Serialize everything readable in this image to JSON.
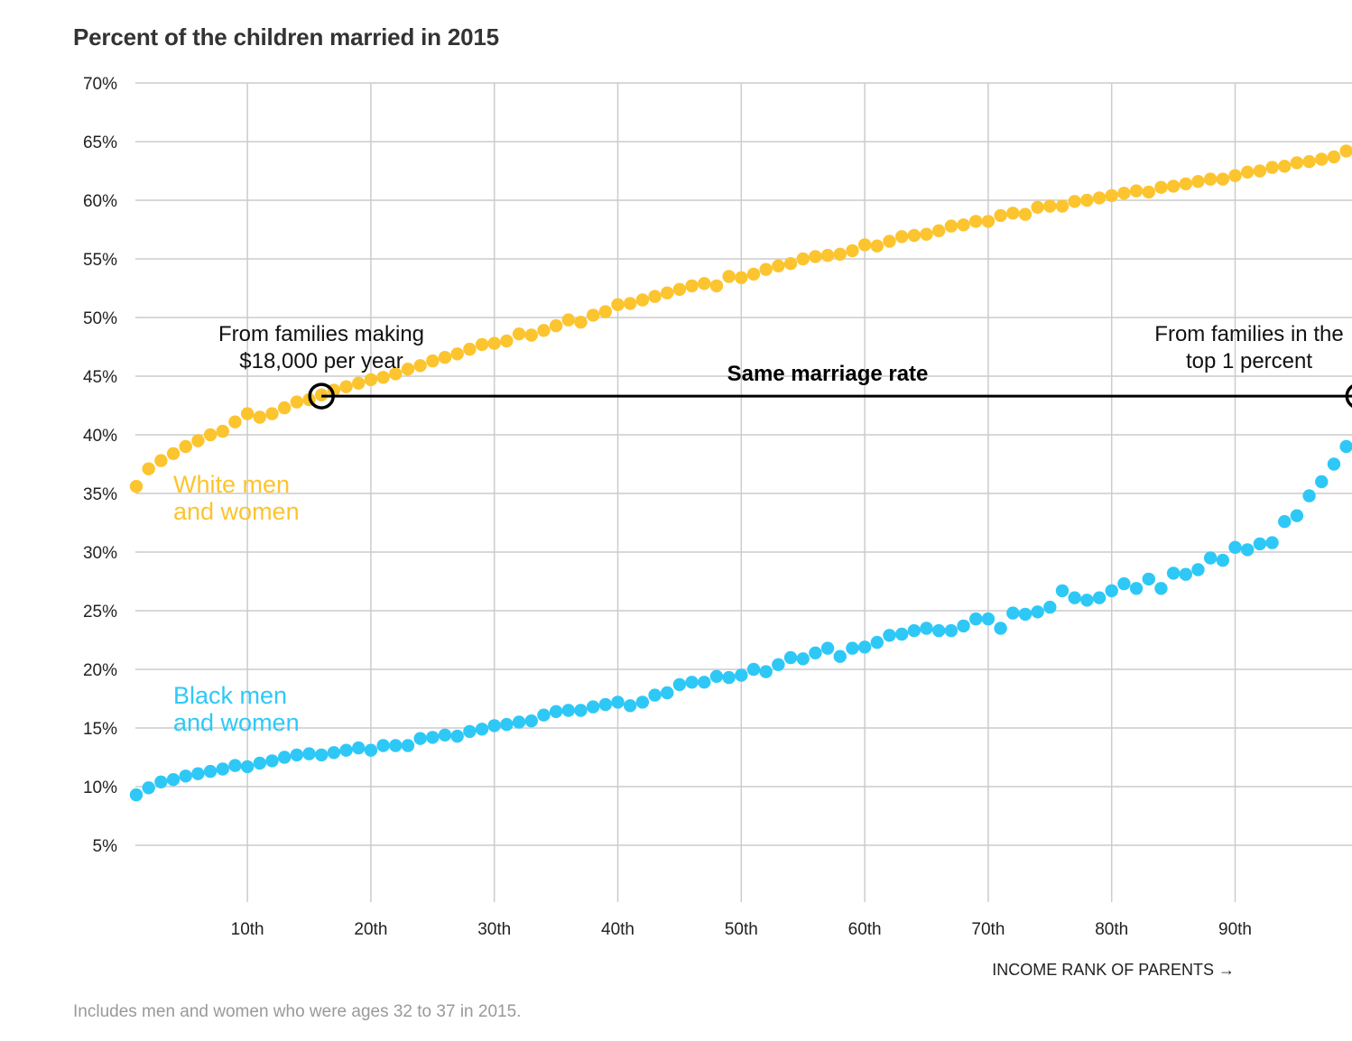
{
  "title": "Percent of the children married in 2015",
  "note": "Includes men and women who were ages 32 to 37 in 2015.",
  "chart_data": {
    "type": "scatter",
    "title": "Percent of the children married in 2015",
    "xlabel": "INCOME RANK OF PARENTS →",
    "ylabel": "",
    "xlim": [
      1,
      100
    ],
    "ylim": [
      0,
      70
    ],
    "y_ticks": [
      "70%",
      "65%",
      "60%",
      "55%",
      "50%",
      "45%",
      "40%",
      "35%",
      "30%",
      "25%",
      "20%",
      "15%",
      "10%",
      "5%"
    ],
    "x_ticks": [
      "10th",
      "20th",
      "30th",
      "40th",
      "50th",
      "60th",
      "70th",
      "80th",
      "90th"
    ],
    "grid": true,
    "x": [
      1,
      2,
      3,
      4,
      5,
      6,
      7,
      8,
      9,
      10,
      11,
      12,
      13,
      14,
      15,
      16,
      17,
      18,
      19,
      20,
      21,
      22,
      23,
      24,
      25,
      26,
      27,
      28,
      29,
      30,
      31,
      32,
      33,
      34,
      35,
      36,
      37,
      38,
      39,
      40,
      41,
      42,
      43,
      44,
      45,
      46,
      47,
      48,
      49,
      50,
      51,
      52,
      53,
      54,
      55,
      56,
      57,
      58,
      59,
      60,
      61,
      62,
      63,
      64,
      65,
      66,
      67,
      68,
      69,
      70,
      71,
      72,
      73,
      74,
      75,
      76,
      77,
      78,
      79,
      80,
      81,
      82,
      83,
      84,
      85,
      86,
      87,
      88,
      89,
      90,
      91,
      92,
      93,
      94,
      95,
      96,
      97,
      98,
      99,
      100
    ],
    "series": [
      {
        "name": "White men and women",
        "color": "#fcc42e",
        "values": [
          35.6,
          37.1,
          37.8,
          38.4,
          39.0,
          39.5,
          40.0,
          40.3,
          41.1,
          41.8,
          41.5,
          41.8,
          42.3,
          42.8,
          43.0,
          43.4,
          43.8,
          44.1,
          44.4,
          44.7,
          44.9,
          45.2,
          45.6,
          45.9,
          46.3,
          46.6,
          46.9,
          47.3,
          47.7,
          47.8,
          48.0,
          48.6,
          48.5,
          48.9,
          49.3,
          49.8,
          49.6,
          50.2,
          50.5,
          51.1,
          51.2,
          51.5,
          51.8,
          52.1,
          52.4,
          52.7,
          52.9,
          52.7,
          53.5,
          53.4,
          53.7,
          54.1,
          54.4,
          54.6,
          55.0,
          55.2,
          55.3,
          55.4,
          55.7,
          56.2,
          56.1,
          56.5,
          56.9,
          57.0,
          57.1,
          57.4,
          57.8,
          57.9,
          58.2,
          58.2,
          58.7,
          58.9,
          58.8,
          59.4,
          59.5,
          59.5,
          59.9,
          60.0,
          60.2,
          60.4,
          60.6,
          60.8,
          60.7,
          61.1,
          61.2,
          61.4,
          61.6,
          61.8,
          61.8,
          62.1,
          62.4,
          62.5,
          62.8,
          62.9,
          63.2,
          63.3,
          63.5,
          63.7,
          64.2,
          64.6
        ]
      },
      {
        "name": "Black men and women",
        "color": "#2ec8f7",
        "values": [
          9.3,
          9.9,
          10.4,
          10.6,
          10.9,
          11.1,
          11.3,
          11.5,
          11.8,
          11.7,
          12.0,
          12.2,
          12.5,
          12.7,
          12.8,
          12.7,
          12.9,
          13.1,
          13.3,
          13.1,
          13.5,
          13.5,
          13.5,
          14.1,
          14.2,
          14.4,
          14.3,
          14.7,
          14.9,
          15.2,
          15.3,
          15.5,
          15.6,
          16.1,
          16.4,
          16.5,
          16.5,
          16.8,
          17.0,
          17.2,
          16.9,
          17.2,
          17.8,
          18.0,
          18.7,
          18.9,
          18.9,
          19.4,
          19.3,
          19.5,
          20.0,
          19.8,
          20.4,
          21.0,
          20.9,
          21.4,
          21.8,
          21.1,
          21.8,
          21.9,
          22.3,
          22.9,
          23.0,
          23.3,
          23.5,
          23.3,
          23.3,
          23.7,
          24.3,
          24.3,
          23.5,
          24.8,
          24.7,
          24.9,
          25.3,
          26.7,
          26.1,
          25.9,
          26.1,
          26.7,
          27.3,
          26.9,
          27.7,
          26.9,
          28.2,
          28.1,
          28.5,
          29.5,
          29.3,
          30.4,
          30.2,
          30.7,
          30.8,
          32.6,
          33.1,
          34.8,
          36.0,
          37.5,
          39.0,
          39.8
        ]
      }
    ],
    "series_labels": [
      {
        "line1": "White men",
        "line2": "and women",
        "color": "#fcc42e"
      },
      {
        "line1": "Black men",
        "line2": "and women",
        "color": "#2ec8f7"
      }
    ],
    "annotations": {
      "left_line1": "From families making",
      "left_line2": "$18,000 per year",
      "right_line1": "From families in the",
      "right_line2": "top 1 percent",
      "bracket_label": "Same marriage rate",
      "bracket_y": 43.3,
      "bracket_x_start": 16,
      "bracket_x_end": 100
    }
  }
}
